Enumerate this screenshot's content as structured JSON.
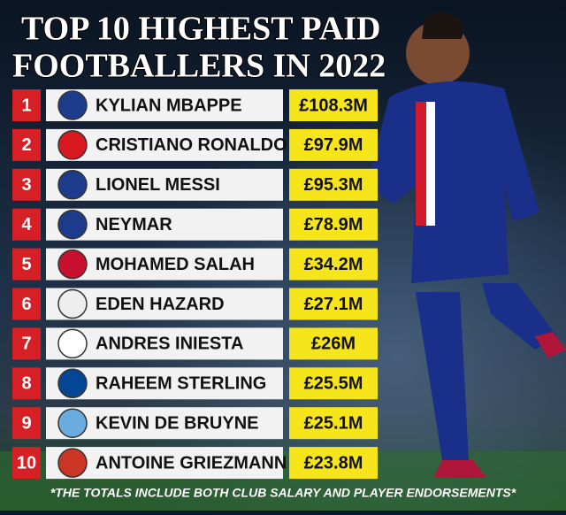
{
  "header": {
    "title": [
      "TOP 10 HIGHEST PAID",
      "FOOTBALLERS IN 2022"
    ]
  },
  "table": {
    "rows": [
      [
        "1",
        "KYLIAN MBAPPE",
        "£108.3M"
      ],
      [
        "2",
        "CRISTIANO RONALDO",
        "£97.9M"
      ],
      [
        "3",
        "LIONEL MESSI",
        "£95.3M"
      ],
      [
        "4",
        "NEYMAR",
        "£78.9M"
      ],
      [
        "5",
        "MOHAMED SALAH",
        "£34.2M"
      ],
      [
        "6",
        "EDEN HAZARD",
        "£27.1M"
      ],
      [
        "7",
        "ANDRES INIESTA",
        "£26M"
      ],
      [
        "8",
        "RAHEEM STERLING",
        "£25.5M"
      ],
      [
        "9",
        "KEVIN DE BRUYNE",
        "£25.1M"
      ],
      [
        "10",
        "ANTOINE GRIEZMANN",
        "£23.8M"
      ]
    ]
  },
  "footnote": "*THE TOTALS INCLUDE BOTH CLUB SALARY AND PLAYER ENDORSEMENTS*"
}
